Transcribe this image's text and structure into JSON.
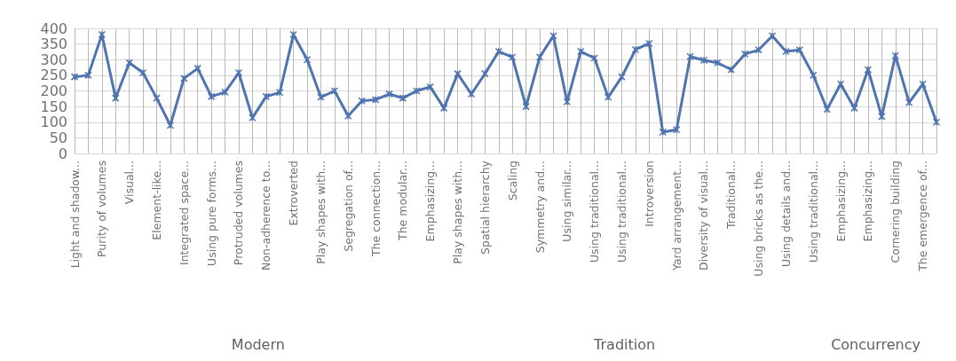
{
  "chart_data": {
    "type": "line",
    "categories": [
      "Light and shadow...",
      null,
      "Purity of volumes",
      null,
      "Visual...",
      null,
      "Element-like...",
      null,
      "Integrated space...",
      null,
      "Using pure forms...",
      null,
      "Protruded volumes",
      null,
      "Non-adherence to...",
      null,
      "Extroverted",
      null,
      "Play shapes with...",
      null,
      "Segregation of...",
      null,
      "The connection...",
      null,
      "The modular...",
      null,
      "Emphasizing...",
      null,
      "Play shapes with...",
      null,
      "Spatial hierarchy",
      null,
      "Scaling",
      null,
      "Symmetry and...",
      null,
      "Using similar...",
      null,
      "Using traditional...",
      null,
      "Using traditional...",
      null,
      "Introversion",
      null,
      "Yard arrangement...",
      null,
      "Diversity of visual...",
      null,
      "Traditional...",
      null,
      "Using bricks as the...",
      null,
      "Using details and...",
      null,
      "Using traditional...",
      null,
      "Emphasizing...",
      null,
      "Emphasizing...",
      null,
      "Cornering building",
      null,
      "The emergence of...",
      null
    ],
    "series": [
      {
        "color": "#4f74b0",
        "values": [
          245,
          250,
          380,
          177,
          290,
          258,
          177,
          90,
          240,
          272,
          182,
          196,
          258,
          114,
          182,
          195,
          380,
          300,
          180,
          200,
          120,
          168,
          172,
          190,
          177,
          200,
          213,
          145,
          255,
          190,
          255,
          326,
          308,
          150,
          308,
          376,
          165,
          326,
          305,
          180,
          245,
          332,
          352,
          68,
          76,
          310,
          298,
          290,
          268,
          318,
          331,
          376,
          326,
          331,
          250,
          141,
          222,
          145,
          268,
          118,
          313,
          163,
          222,
          100
        ]
      }
    ],
    "ylim": [
      0,
      400
    ],
    "yticks": [
      0,
      50,
      100,
      150,
      200,
      250,
      300,
      350,
      400
    ],
    "grid": true,
    "marker": "cross",
    "line_style": "solid",
    "annotations": [
      "Modern",
      "Tradition",
      "Concurrency"
    ]
  }
}
